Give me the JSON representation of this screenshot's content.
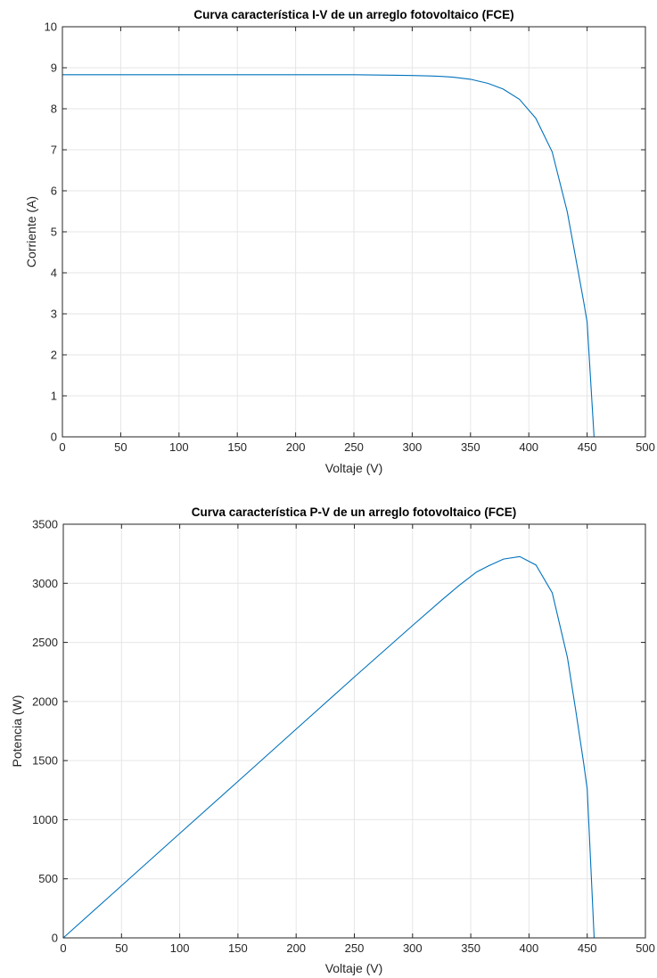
{
  "chart_data": [
    {
      "type": "line",
      "title": "Curva característica I-V de un arreglo fotovoltaico (FCE)",
      "xlabel": "Voltaje (V)",
      "ylabel": "Corriente (A)",
      "xlim": [
        0,
        500
      ],
      "ylim": [
        0,
        10
      ],
      "xticks": [
        0,
        50,
        100,
        150,
        200,
        250,
        300,
        350,
        400,
        450,
        500
      ],
      "yticks": [
        0,
        1,
        2,
        3,
        4,
        5,
        6,
        7,
        8,
        9,
        10
      ],
      "grid": true,
      "color": "#0072BD",
      "series": [
        {
          "x": [
            0,
            50,
            100,
            150,
            200,
            250,
            280,
            300,
            315,
            325,
            335,
            350,
            365,
            378,
            392,
            406,
            420,
            433,
            440,
            447,
            450,
            453,
            456
          ],
          "y": [
            8.83,
            8.83,
            8.83,
            8.83,
            8.83,
            8.83,
            8.82,
            8.81,
            8.8,
            8.79,
            8.77,
            8.72,
            8.62,
            8.48,
            8.23,
            7.77,
            6.95,
            5.48,
            4.4,
            3.3,
            2.8,
            1.4,
            0
          ]
        }
      ]
    },
    {
      "type": "line",
      "title": "Curva característica P-V de un arreglo fotovoltaico (FCE)",
      "xlabel": "Voltaje (V)",
      "ylabel": "Potencia (W)",
      "xlim": [
        0,
        500
      ],
      "ylim": [
        0,
        3500
      ],
      "xticks": [
        0,
        50,
        100,
        150,
        200,
        250,
        300,
        350,
        400,
        450,
        500
      ],
      "yticks": [
        0,
        500,
        1000,
        1500,
        2000,
        2500,
        3000,
        3500
      ],
      "grid": true,
      "color": "#0072BD",
      "series": [
        {
          "x": [
            0,
            50,
            100,
            150,
            200,
            250,
            300,
            325,
            340,
            355,
            365,
            378,
            392,
            406,
            420,
            433,
            440,
            447,
            450,
            453,
            456
          ],
          "y": [
            0,
            441,
            883,
            1324,
            1766,
            2207,
            2643,
            2857,
            2982,
            3096,
            3146,
            3205,
            3226,
            3155,
            2919,
            2373,
            1936,
            1475,
            1260,
            634,
            0
          ]
        }
      ]
    }
  ]
}
